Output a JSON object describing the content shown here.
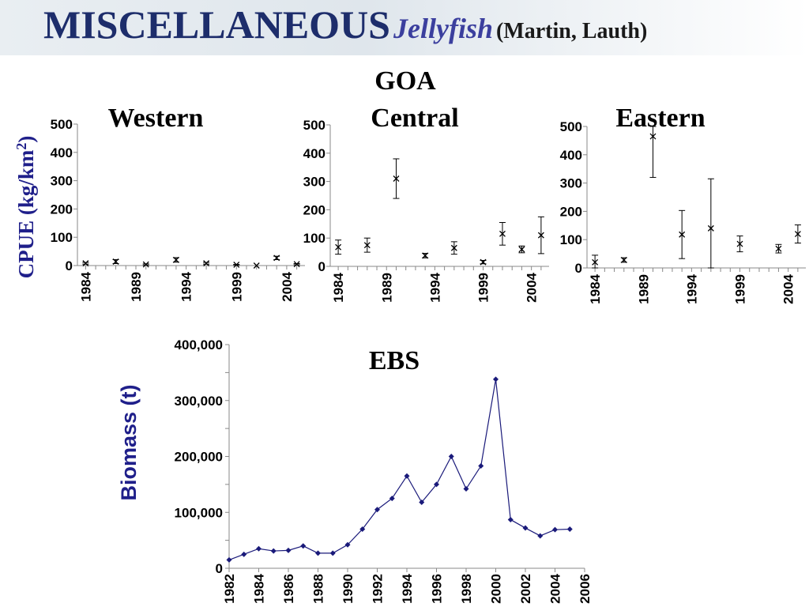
{
  "title": {
    "main": "MISCELLANEOUS",
    "sub": "Jellyfish",
    "authors": "(Martin, Lauth)"
  },
  "goa_label": "GOA",
  "goa_ylabel": "CPUE (kg/km",
  "goa_ylabel_sup": "2",
  "goa_ylabel_end": ")",
  "colors": {
    "title": "#1d2d6b",
    "ylabel": "#1f1f8a",
    "ebs_line": "#1a1a7a",
    "marker": "#000000"
  },
  "chart_data": [
    {
      "type": "scatter",
      "title": "Western",
      "region": "GOA",
      "ylim": [
        0,
        500
      ],
      "yticks": [
        "500",
        "400",
        "300",
        "200",
        "100",
        "0"
      ],
      "xticks": [
        "1984",
        "1989",
        "1994",
        "1999",
        "2004"
      ],
      "xlim": [
        1983.5,
        2005.5
      ],
      "series": [
        {
          "x": [
            1984,
            1987,
            1990,
            1993,
            1996,
            1999,
            2001,
            2003,
            2005
          ],
          "y": [
            8,
            14,
            4,
            20,
            8,
            3,
            0,
            27,
            5
          ],
          "err": [
            3,
            7,
            2,
            8,
            3,
            1,
            0,
            6,
            2
          ]
        }
      ]
    },
    {
      "type": "scatter",
      "title": "Central",
      "region": "GOA",
      "ylim": [
        0,
        500
      ],
      "yticks": [
        "500",
        "400",
        "300",
        "200",
        "100",
        "0"
      ],
      "xticks": [
        "1984",
        "1989",
        "1994",
        "1999",
        "2004"
      ],
      "xlim": [
        1983.5,
        2005.5
      ],
      "series": [
        {
          "x": [
            1984,
            1987,
            1990,
            1993,
            1996,
            1999,
            2001,
            2003,
            2005
          ],
          "y": [
            68,
            75,
            310,
            38,
            65,
            15,
            115,
            60,
            110
          ],
          "err": [
            25,
            25,
            70,
            8,
            22,
            6,
            40,
            12,
            65
          ]
        }
      ]
    },
    {
      "type": "scatter",
      "title": "Eastern",
      "region": "GOA",
      "ylim": [
        0,
        500
      ],
      "yticks": [
        "500",
        "400",
        "300",
        "200",
        "100",
        "0"
      ],
      "xticks": [
        "1984",
        "1989",
        "1994",
        "1999",
        "2004"
      ],
      "xlim": [
        1983.5,
        2005.5
      ],
      "series": [
        {
          "x": [
            1984,
            1987,
            1990,
            1993,
            1996,
            1999,
            2003,
            2005
          ],
          "y": [
            20,
            28,
            465,
            118,
            140,
            85,
            68,
            120
          ],
          "err": [
            25,
            8,
            145,
            85,
            175,
            28,
            15,
            32
          ]
        }
      ]
    },
    {
      "type": "line",
      "title": "EBS",
      "ylabel": "Biomass (t)",
      "ylim": [
        0,
        400000
      ],
      "yticks": [
        "400,000",
        "300,000",
        "200,000",
        "100,000",
        "0"
      ],
      "xlim": [
        1982,
        2006
      ],
      "xticks": [
        "1982",
        "1984",
        "1986",
        "1988",
        "1990",
        "1992",
        "1994",
        "1996",
        "1998",
        "2000",
        "2002",
        "2004",
        "2006"
      ],
      "x": [
        1982,
        1983,
        1984,
        1985,
        1986,
        1987,
        1988,
        1989,
        1990,
        1991,
        1992,
        1993,
        1994,
        1995,
        1996,
        1997,
        1998,
        1999,
        2000,
        2001,
        2002,
        2003,
        2004,
        2005
      ],
      "values": [
        15000,
        25000,
        35000,
        31000,
        32000,
        40000,
        27000,
        27000,
        42000,
        70000,
        105000,
        125000,
        165000,
        118000,
        150000,
        200000,
        142000,
        183000,
        338000,
        87000,
        72000,
        58000,
        69000,
        70000
      ]
    }
  ]
}
